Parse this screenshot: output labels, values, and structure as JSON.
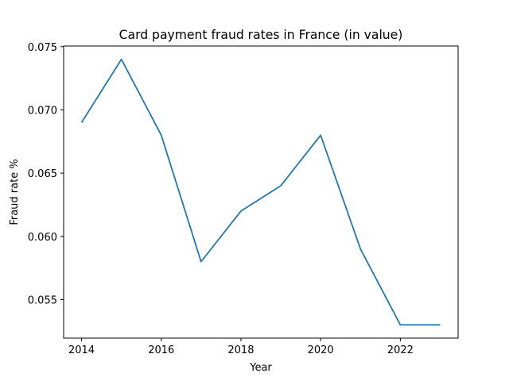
{
  "chart_data": {
    "type": "line",
    "title": "Card payment fraud rates in France (in value)",
    "xlabel": "Year",
    "ylabel": "Fraud rate %",
    "x": [
      2014,
      2015,
      2016,
      2017,
      2018,
      2019,
      2020,
      2021,
      2022,
      2023
    ],
    "series": [
      {
        "values": [
          0.069,
          0.074,
          0.068,
          0.058,
          0.062,
          0.064,
          0.068,
          0.059,
          0.053,
          0.053
        ],
        "color": "#1f77b4"
      }
    ],
    "xlim": [
      2013.55,
      2023.45
    ],
    "ylim": [
      0.05195,
      0.07505
    ],
    "xticks": [
      "2014",
      "2016",
      "2018",
      "2020",
      "2022"
    ],
    "yticks": [
      "0.055",
      "0.060",
      "0.065",
      "0.070",
      "0.075"
    ],
    "grid": false,
    "legend": "none"
  }
}
